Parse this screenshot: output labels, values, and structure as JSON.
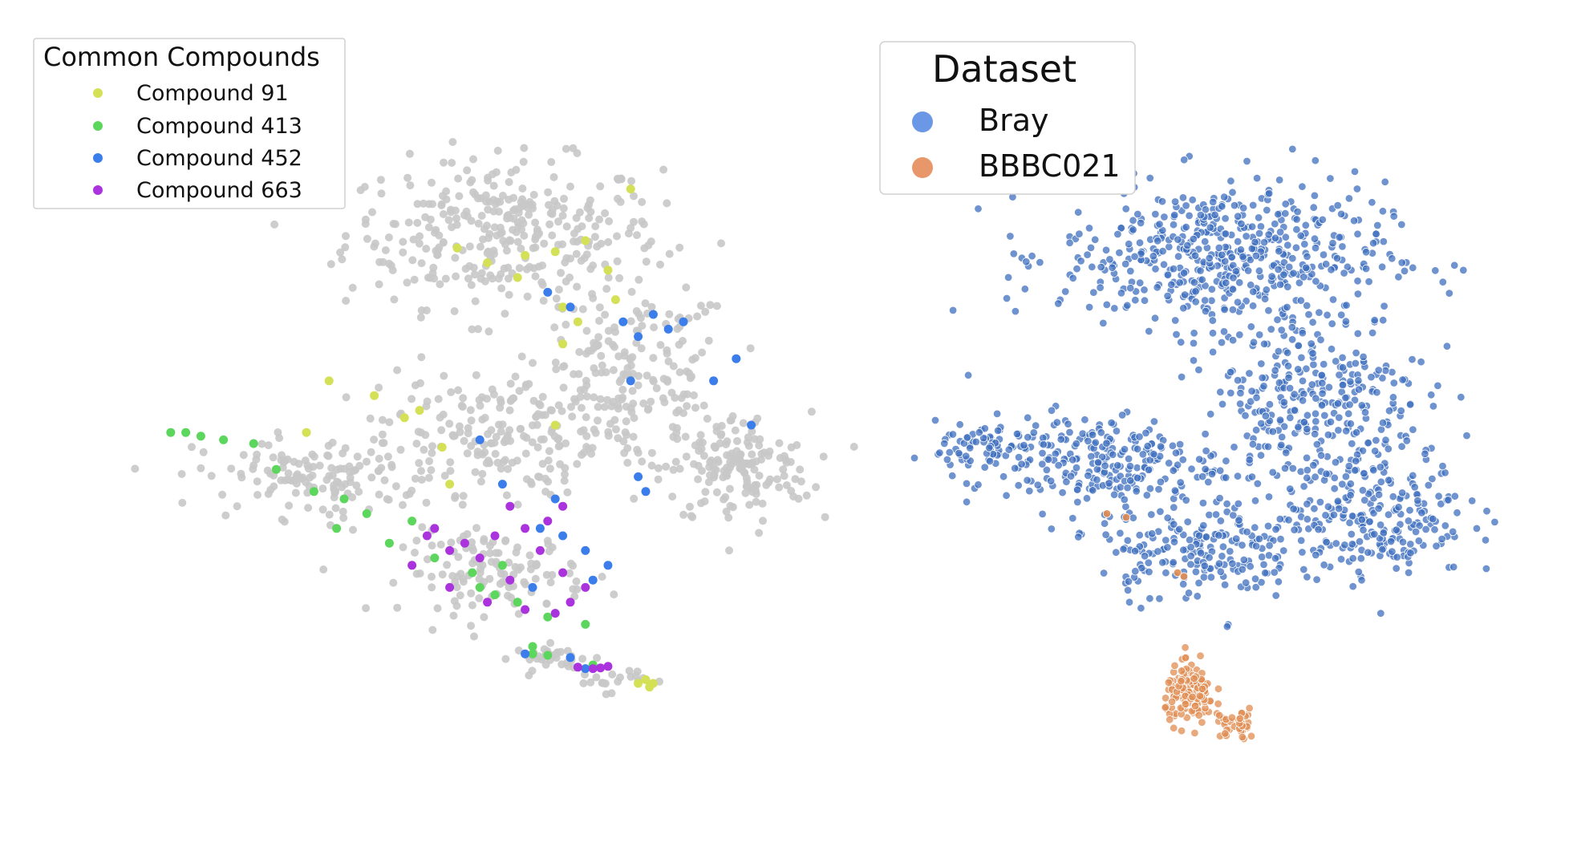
{
  "chart_data": [
    {
      "type": "scatter",
      "title": "",
      "xlabel": "",
      "ylabel": "",
      "axes_visible": false,
      "grid": false,
      "legend": {
        "title": "Common Compounds",
        "placement": "top-left",
        "entries": [
          "Compound 91",
          "Compound 413",
          "Compound 452",
          "Compound 663"
        ]
      },
      "background_color": "#c8c8c8",
      "series": [
        {
          "name": "Compound 91",
          "color": "#d4e157",
          "points": [
            [
              5.0,
              7.4
            ],
            [
              5.9,
              7.3
            ],
            [
              6.3,
              7.35
            ],
            [
              5.4,
              7.2
            ],
            [
              6.7,
              7.5
            ],
            [
              7.3,
              8.2
            ],
            [
              7.1,
              6.7
            ],
            [
              6.4,
              6.1
            ],
            [
              4.5,
              5.2
            ],
            [
              3.9,
              5.4
            ],
            [
              3.3,
              5.6
            ],
            [
              4.3,
              5.1
            ],
            [
              3.0,
              4.9
            ],
            [
              6.3,
              5.0
            ],
            [
              4.8,
              4.7
            ],
            [
              6.4,
              6.6
            ],
            [
              7.0,
              7.1
            ],
            [
              5.8,
              7.0
            ],
            [
              6.6,
              6.4
            ],
            [
              4.9,
              4.2
            ],
            [
              7.5,
              1.55
            ],
            [
              7.6,
              1.5
            ],
            [
              7.55,
              1.45
            ],
            [
              7.4,
              1.5
            ]
          ]
        },
        {
          "name": "Compound 413",
          "color": "#5cd65c",
          "points": [
            [
              1.2,
              4.9
            ],
            [
              1.4,
              4.9
            ],
            [
              1.6,
              4.85
            ],
            [
              1.9,
              4.8
            ],
            [
              2.3,
              4.75
            ],
            [
              2.6,
              4.4
            ],
            [
              3.1,
              4.1
            ],
            [
              3.5,
              4.0
            ],
            [
              3.8,
              3.8
            ],
            [
              3.4,
              3.6
            ],
            [
              4.1,
              3.4
            ],
            [
              4.7,
              3.2
            ],
            [
              5.2,
              3.0
            ],
            [
              5.6,
              3.1
            ],
            [
              5.3,
              2.8
            ],
            [
              5.8,
              2.6
            ],
            [
              6.2,
              2.4
            ],
            [
              6.7,
              2.3
            ],
            [
              5.5,
              2.7
            ],
            [
              4.4,
              3.7
            ],
            [
              6.0,
              1.9
            ],
            [
              6.2,
              1.88
            ],
            [
              6.0,
              2.0
            ],
            [
              6.8,
              1.75
            ]
          ]
        },
        {
          "name": "Compound 452",
          "color": "#3b7dea",
          "points": [
            [
              6.2,
              6.8
            ],
            [
              6.5,
              6.6
            ],
            [
              7.2,
              6.4
            ],
            [
              7.6,
              6.5
            ],
            [
              7.4,
              6.2
            ],
            [
              7.8,
              6.3
            ],
            [
              8.0,
              6.4
            ],
            [
              7.3,
              5.6
            ],
            [
              8.4,
              5.6
            ],
            [
              8.7,
              5.9
            ],
            [
              8.9,
              5.0
            ],
            [
              7.4,
              4.3
            ],
            [
              7.5,
              4.1
            ],
            [
              6.1,
              3.6
            ],
            [
              6.4,
              3.5
            ],
            [
              6.7,
              3.3
            ],
            [
              7.0,
              3.1
            ],
            [
              6.8,
              2.9
            ],
            [
              5.3,
              4.8
            ],
            [
              5.6,
              4.2
            ],
            [
              6.3,
              4.0
            ],
            [
              6.0,
              2.8
            ],
            [
              5.9,
              1.9
            ],
            [
              6.5,
              1.85
            ],
            [
              6.7,
              1.7
            ]
          ]
        },
        {
          "name": "Compound 663",
          "color": "#aa33dd",
          "points": [
            [
              4.7,
              3.6
            ],
            [
              5.1,
              3.4
            ],
            [
              5.5,
              3.5
            ],
            [
              5.9,
              3.6
            ],
            [
              6.2,
              3.7
            ],
            [
              6.4,
              3.9
            ],
            [
              5.7,
              3.9
            ],
            [
              5.3,
              3.2
            ],
            [
              4.9,
              3.3
            ],
            [
              4.4,
              3.1
            ],
            [
              4.9,
              2.8
            ],
            [
              5.4,
              2.6
            ],
            [
              5.9,
              2.5
            ],
            [
              6.3,
              2.45
            ],
            [
              6.5,
              2.6
            ],
            [
              6.7,
              2.8
            ],
            [
              6.4,
              3.0
            ],
            [
              6.1,
              3.3
            ],
            [
              5.7,
              2.9
            ],
            [
              4.6,
              3.5
            ],
            [
              6.6,
              1.72
            ],
            [
              6.8,
              1.7
            ],
            [
              6.9,
              1.71
            ],
            [
              7.0,
              1.73
            ]
          ]
        }
      ]
    },
    {
      "type": "scatter",
      "title": "",
      "xlabel": "",
      "ylabel": "",
      "axes_visible": false,
      "grid": false,
      "legend": {
        "title": "Dataset",
        "placement": "top-left",
        "entries": [
          "Bray",
          "BBBC021"
        ]
      },
      "series": [
        {
          "name": "Bray",
          "color": "#3f6fbf",
          "regions": [
            {
              "center": [
                4.8,
                7.3
              ],
              "spread": [
                2.3,
                0.9
              ],
              "count": 520
            },
            {
              "center": [
                6.2,
                5.4
              ],
              "spread": [
                1.6,
                1.2
              ],
              "count": 320
            },
            {
              "center": [
                2.8,
                4.5
              ],
              "spread": [
                1.8,
                0.6
              ],
              "count": 260
            },
            {
              "center": [
                7.2,
                3.8
              ],
              "spread": [
                1.3,
                0.8
              ],
              "count": 240
            },
            {
              "center": [
                4.4,
                3.3
              ],
              "spread": [
                1.4,
                0.6
              ],
              "count": 200
            },
            {
              "center": [
                1.1,
                4.7
              ],
              "spread": [
                0.7,
                0.3
              ],
              "count": 60
            }
          ]
        },
        {
          "name": "BBBC021",
          "color": "#e08c52",
          "regions": [
            {
              "center": [
                4.3,
                1.35
              ],
              "spread": [
                0.35,
                0.35
              ],
              "count": 150
            },
            {
              "center": [
                5.0,
                0.95
              ],
              "spread": [
                0.3,
                0.2
              ],
              "count": 40
            }
          ],
          "extra_points": [
            [
              3.0,
              3.8
            ],
            [
              3.3,
              3.75
            ],
            [
              4.1,
              3.0
            ],
            [
              4.2,
              2.95
            ]
          ]
        }
      ]
    }
  ]
}
